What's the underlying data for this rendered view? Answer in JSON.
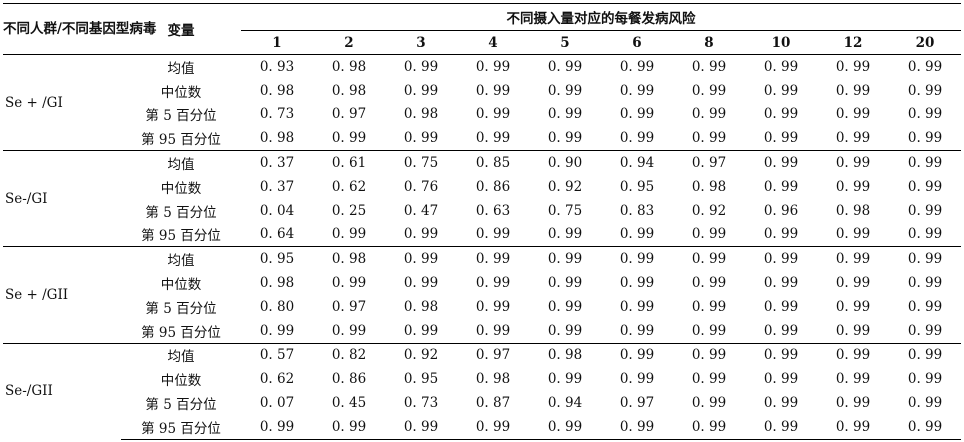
{
  "header": {
    "population": "不同人群/不同基因型病毒",
    "variable": "变量",
    "span_title": "不同摄入量对应的每餐发病风险",
    "doses": [
      "1",
      "2",
      "3",
      "4",
      "5",
      "6",
      "8",
      "10",
      "12",
      "20"
    ]
  },
  "groups": [
    {
      "name": "Se + /GI",
      "rows": [
        {
          "label": "均值",
          "values": [
            "0. 93",
            "0. 98",
            "0. 99",
            "0. 99",
            "0. 99",
            "0. 99",
            "0. 99",
            "0. 99",
            "0. 99",
            "0. 99"
          ]
        },
        {
          "label": "中位数",
          "values": [
            "0. 98",
            "0. 98",
            "0. 99",
            "0. 99",
            "0. 99",
            "0. 99",
            "0. 99",
            "0. 99",
            "0. 99",
            "0. 99"
          ]
        },
        {
          "label": "第 5 百分位",
          "values": [
            "0. 73",
            "0. 97",
            "0. 98",
            "0. 99",
            "0. 99",
            "0. 99",
            "0. 99",
            "0. 99",
            "0. 99",
            "0. 99"
          ]
        },
        {
          "label": "第 95 百分位",
          "values": [
            "0. 98",
            "0. 99",
            "0. 99",
            "0. 99",
            "0. 99",
            "0. 99",
            "0. 99",
            "0. 99",
            "0. 99",
            "0. 99"
          ]
        }
      ]
    },
    {
      "name": "Se-/GI",
      "rows": [
        {
          "label": "均值",
          "values": [
            "0. 37",
            "0. 61",
            "0. 75",
            "0. 85",
            "0. 90",
            "0. 94",
            "0. 97",
            "0. 99",
            "0. 99",
            "0. 99"
          ]
        },
        {
          "label": "中位数",
          "values": [
            "0. 37",
            "0. 62",
            "0. 76",
            "0. 86",
            "0. 92",
            "0. 95",
            "0. 98",
            "0. 99",
            "0. 99",
            "0. 99"
          ]
        },
        {
          "label": "第 5 百分位",
          "values": [
            "0. 04",
            "0. 25",
            "0. 47",
            "0. 63",
            "0. 75",
            "0. 83",
            "0. 92",
            "0. 96",
            "0. 98",
            "0. 99"
          ]
        },
        {
          "label": "第 95 百分位",
          "values": [
            "0. 64",
            "0. 99",
            "0. 99",
            "0. 99",
            "0. 99",
            "0. 99",
            "0. 99",
            "0. 99",
            "0. 99",
            "0. 99"
          ]
        }
      ]
    },
    {
      "name": "Se + /GII",
      "rows": [
        {
          "label": "均值",
          "values": [
            "0. 95",
            "0. 98",
            "0. 99",
            "0. 99",
            "0. 99",
            "0. 99",
            "0. 99",
            "0. 99",
            "0. 99",
            "0. 99"
          ]
        },
        {
          "label": "中位数",
          "values": [
            "0. 98",
            "0. 99",
            "0. 99",
            "0. 99",
            "0. 99",
            "0. 99",
            "0. 99",
            "0. 99",
            "0. 99",
            "0. 99"
          ]
        },
        {
          "label": "第 5 百分位",
          "values": [
            "0. 80",
            "0. 97",
            "0. 98",
            "0. 99",
            "0. 99",
            "0. 99",
            "0. 99",
            "0. 99",
            "0. 99",
            "0. 99"
          ]
        },
        {
          "label": "第 95 百分位",
          "values": [
            "0. 99",
            "0. 99",
            "0. 99",
            "0. 99",
            "0. 99",
            "0. 99",
            "0. 99",
            "0. 99",
            "0. 99",
            "0. 99"
          ]
        }
      ]
    },
    {
      "name": "Se-/GII",
      "rows": [
        {
          "label": "均值",
          "values": [
            "0. 57",
            "0. 82",
            "0. 92",
            "0. 97",
            "0. 98",
            "0. 99",
            "0. 99",
            "0. 99",
            "0. 99",
            "0. 99"
          ]
        },
        {
          "label": "中位数",
          "values": [
            "0. 62",
            "0. 86",
            "0. 95",
            "0. 98",
            "0. 99",
            "0. 99",
            "0. 99",
            "0. 99",
            "0. 99",
            "0. 99"
          ]
        },
        {
          "label": "第 5 百分位",
          "values": [
            "0. 07",
            "0. 45",
            "0. 73",
            "0. 87",
            "0. 94",
            "0. 97",
            "0. 99",
            "0. 99",
            "0. 99",
            "0. 99"
          ]
        },
        {
          "label": "第 95 百分位",
          "values": [
            "0. 99",
            "0. 99",
            "0. 99",
            "0. 99",
            "0. 99",
            "0. 99",
            "0. 99",
            "0. 99",
            "0. 99",
            "0. 99"
          ]
        }
      ]
    }
  ]
}
